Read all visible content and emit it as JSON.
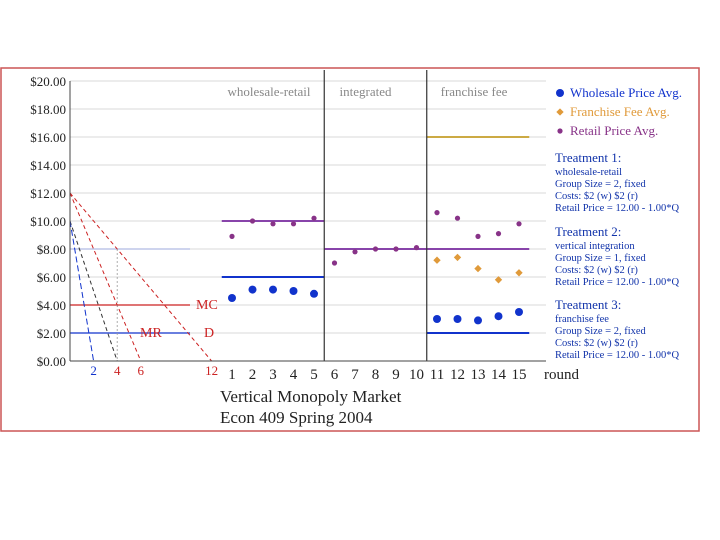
{
  "chart_data": {
    "type": "scatter",
    "title": "Vertical Monopoly Market",
    "subtitle": "Econ 409  Spring 2004",
    "xlabel": "round",
    "ylim": [
      0,
      20
    ],
    "y_ticks": [
      "$0.00",
      "$2.00",
      "$4.00",
      "$6.00",
      "$8.00",
      "$10.00",
      "$12.00",
      "$14.00",
      "$16.00",
      "$18.00",
      "$20.00"
    ],
    "x_ticks": [
      "1",
      "2",
      "3",
      "4",
      "5",
      "6",
      "7",
      "8",
      "9",
      "10",
      "11",
      "12",
      "13",
      "14",
      "15"
    ],
    "quantity_ticks": [
      "2",
      "4",
      "6",
      "12"
    ],
    "curve_labels": {
      "mc": "MC",
      "mr": "MR",
      "d": "D"
    },
    "sections": [
      "wholesale-retail",
      "integrated",
      "franchise fee"
    ],
    "series": [
      {
        "name": "Wholesale Price Avg.",
        "color": "#1133cc",
        "marker": "circle",
        "x": [
          1,
          2,
          3,
          4,
          5,
          11,
          12,
          13,
          14,
          15
        ],
        "y": [
          4.5,
          5.1,
          5.1,
          5.0,
          4.8,
          3.0,
          3.0,
          2.9,
          3.2,
          3.5
        ]
      },
      {
        "name": "Franchise Fee Avg.",
        "color": "#e09a3a",
        "marker": "diamond",
        "x": [
          11,
          12,
          13,
          14,
          15
        ],
        "y": [
          7.2,
          7.4,
          6.6,
          5.8,
          6.3
        ]
      },
      {
        "name": "Retail Price Avg.",
        "color": "#883388",
        "marker": "dot",
        "x": [
          1,
          2,
          3,
          4,
          5,
          6,
          7,
          8,
          9,
          10,
          11,
          12,
          13,
          14,
          15
        ],
        "y": [
          8.9,
          10.0,
          9.8,
          9.8,
          10.2,
          7.0,
          7.8,
          8.0,
          8.0,
          8.1,
          10.6,
          10.2,
          8.9,
          9.1,
          9.8
        ]
      }
    ],
    "benchmarks": [
      {
        "color": "#8844aa",
        "x_from": 0.5,
        "x_to": 5.5,
        "y": 10
      },
      {
        "color": "#1133cc",
        "x_from": 0.5,
        "x_to": 5.5,
        "y": 6
      },
      {
        "color": "#8844aa",
        "x_from": 5.5,
        "x_to": 15.5,
        "y": 8
      },
      {
        "color": "#ccaa44",
        "x_from": 10.5,
        "x_to": 15.5,
        "y": 16
      },
      {
        "color": "#1133cc",
        "x_from": 10.5,
        "x_to": 15.5,
        "y": 2
      }
    ],
    "treatments": [
      {
        "title": "Treatment 1:",
        "lines": [
          "wholesale-retail",
          "Group Size = 2, fixed",
          "Costs: $2 (w)  $2 (r)",
          "Retail Price = 12.00 - 1.00*Q"
        ]
      },
      {
        "title": "Treatment 2:",
        "lines": [
          "vertical integration",
          "Group Size = 1, fixed",
          "Costs: $2 (w)  $2 (r)",
          "Retail Price = 12.00 - 1.00*Q"
        ]
      },
      {
        "title": "Treatment 3:",
        "lines": [
          "franchise fee",
          "Group Size = 2, fixed",
          "Costs: $2 (w)  $2 (r)",
          "Retail Price = 12.00 - 1.00*Q"
        ]
      }
    ],
    "colors": {
      "frame": "#cc5555",
      "grid": "#cccccc",
      "text_blue": "#1133aa",
      "curve_red": "#cc2222",
      "curve_blue": "#1133cc"
    }
  }
}
